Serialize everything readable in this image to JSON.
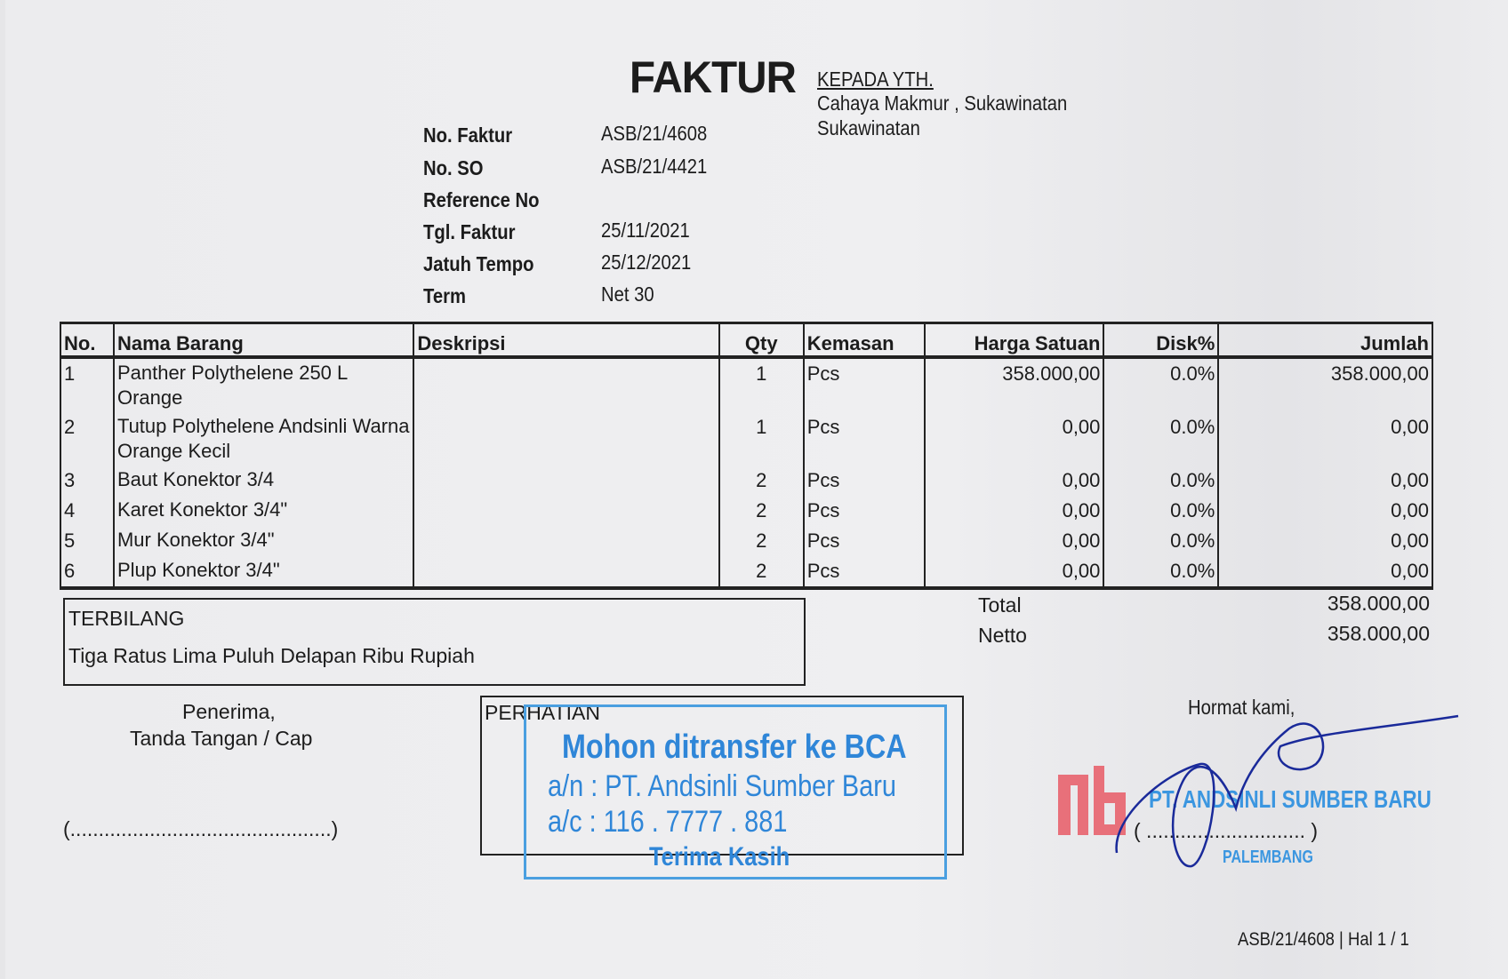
{
  "header": {
    "title": "FAKTUR",
    "to_label": "KEPADA YTH.",
    "customer_line1": "Cahaya Makmur , Sukawinatan",
    "customer_line2": "Sukawinatan"
  },
  "info": [
    {
      "label": "No. Faktur",
      "value": "ASB/21/4608"
    },
    {
      "label": "No. SO",
      "value": "ASB/21/4421"
    },
    {
      "label": "Reference No",
      "value": ""
    },
    {
      "label": "Tgl. Faktur",
      "value": "25/11/2021"
    },
    {
      "label": "Jatuh Tempo",
      "value": "25/12/2021"
    },
    {
      "label": "Term",
      "value": "Net 30"
    }
  ],
  "table": {
    "headers": [
      "No.",
      "Nama Barang",
      "Deskripsi",
      "Qty",
      "Kemasan",
      "Harga Satuan",
      "Disk%",
      "Jumlah"
    ],
    "rows": [
      {
        "no": "1",
        "name": "Panther Polythelene 250 L Orange",
        "desc": "",
        "qty": "1",
        "unit": "Pcs",
        "price": "358.000,00",
        "disc": "0.0%",
        "total": "358.000,00"
      },
      {
        "no": "2",
        "name": "Tutup Polythelene Andsinli Warna Orange Kecil",
        "desc": "",
        "qty": "1",
        "unit": "Pcs",
        "price": "0,00",
        "disc": "0.0%",
        "total": "0,00"
      },
      {
        "no": "3",
        "name": "Baut Konektor 3/4",
        "desc": "",
        "qty": "2",
        "unit": "Pcs",
        "price": "0,00",
        "disc": "0.0%",
        "total": "0,00"
      },
      {
        "no": "4",
        "name": "Karet Konektor 3/4\"",
        "desc": "",
        "qty": "2",
        "unit": "Pcs",
        "price": "0,00",
        "disc": "0.0%",
        "total": "0,00"
      },
      {
        "no": "5",
        "name": "Mur Konektor 3/4\"",
        "desc": "",
        "qty": "2",
        "unit": "Pcs",
        "price": "0,00",
        "disc": "0.0%",
        "total": "0,00"
      },
      {
        "no": "6",
        "name": "Plup Konektor 3/4\"",
        "desc": "",
        "qty": "2",
        "unit": "Pcs",
        "price": "0,00",
        "disc": "0.0%",
        "total": "0,00"
      }
    ]
  },
  "terbilang": {
    "label": "TERBILANG",
    "text": "Tiga Ratus Lima Puluh Delapan Ribu Rupiah"
  },
  "totals": {
    "total_label": "Total",
    "total_value": "358.000,00",
    "netto_label": "Netto",
    "netto_value": "358.000,00"
  },
  "receiver": {
    "line1": "Penerima,",
    "line2": "Tanda Tangan / Cap",
    "sign_line": "(..............................................)"
  },
  "notice": {
    "label": "PERHATIAN",
    "stamp_line1": "Mohon ditransfer ke BCA",
    "stamp_line2": "a/n : PT. Andsinli Sumber Baru",
    "stamp_line3": "a/c : 116 . 7777 . 881",
    "stamp_line4": "Terima Kasih"
  },
  "sender": {
    "greeting": "Hormat kami,",
    "company": "PT. ANDSINLI SUMBER BARU",
    "city": "PALEMBANG",
    "sign_line": "( ............................ )",
    "logo_text": "ASB"
  },
  "footer": {
    "page_ref": "ASB/21/4608 | Hal 1 / 1"
  },
  "colors": {
    "stamp_blue": "#2f86d8",
    "logo_red": "#e8707a",
    "signature_ink": "#1a2a9a"
  }
}
